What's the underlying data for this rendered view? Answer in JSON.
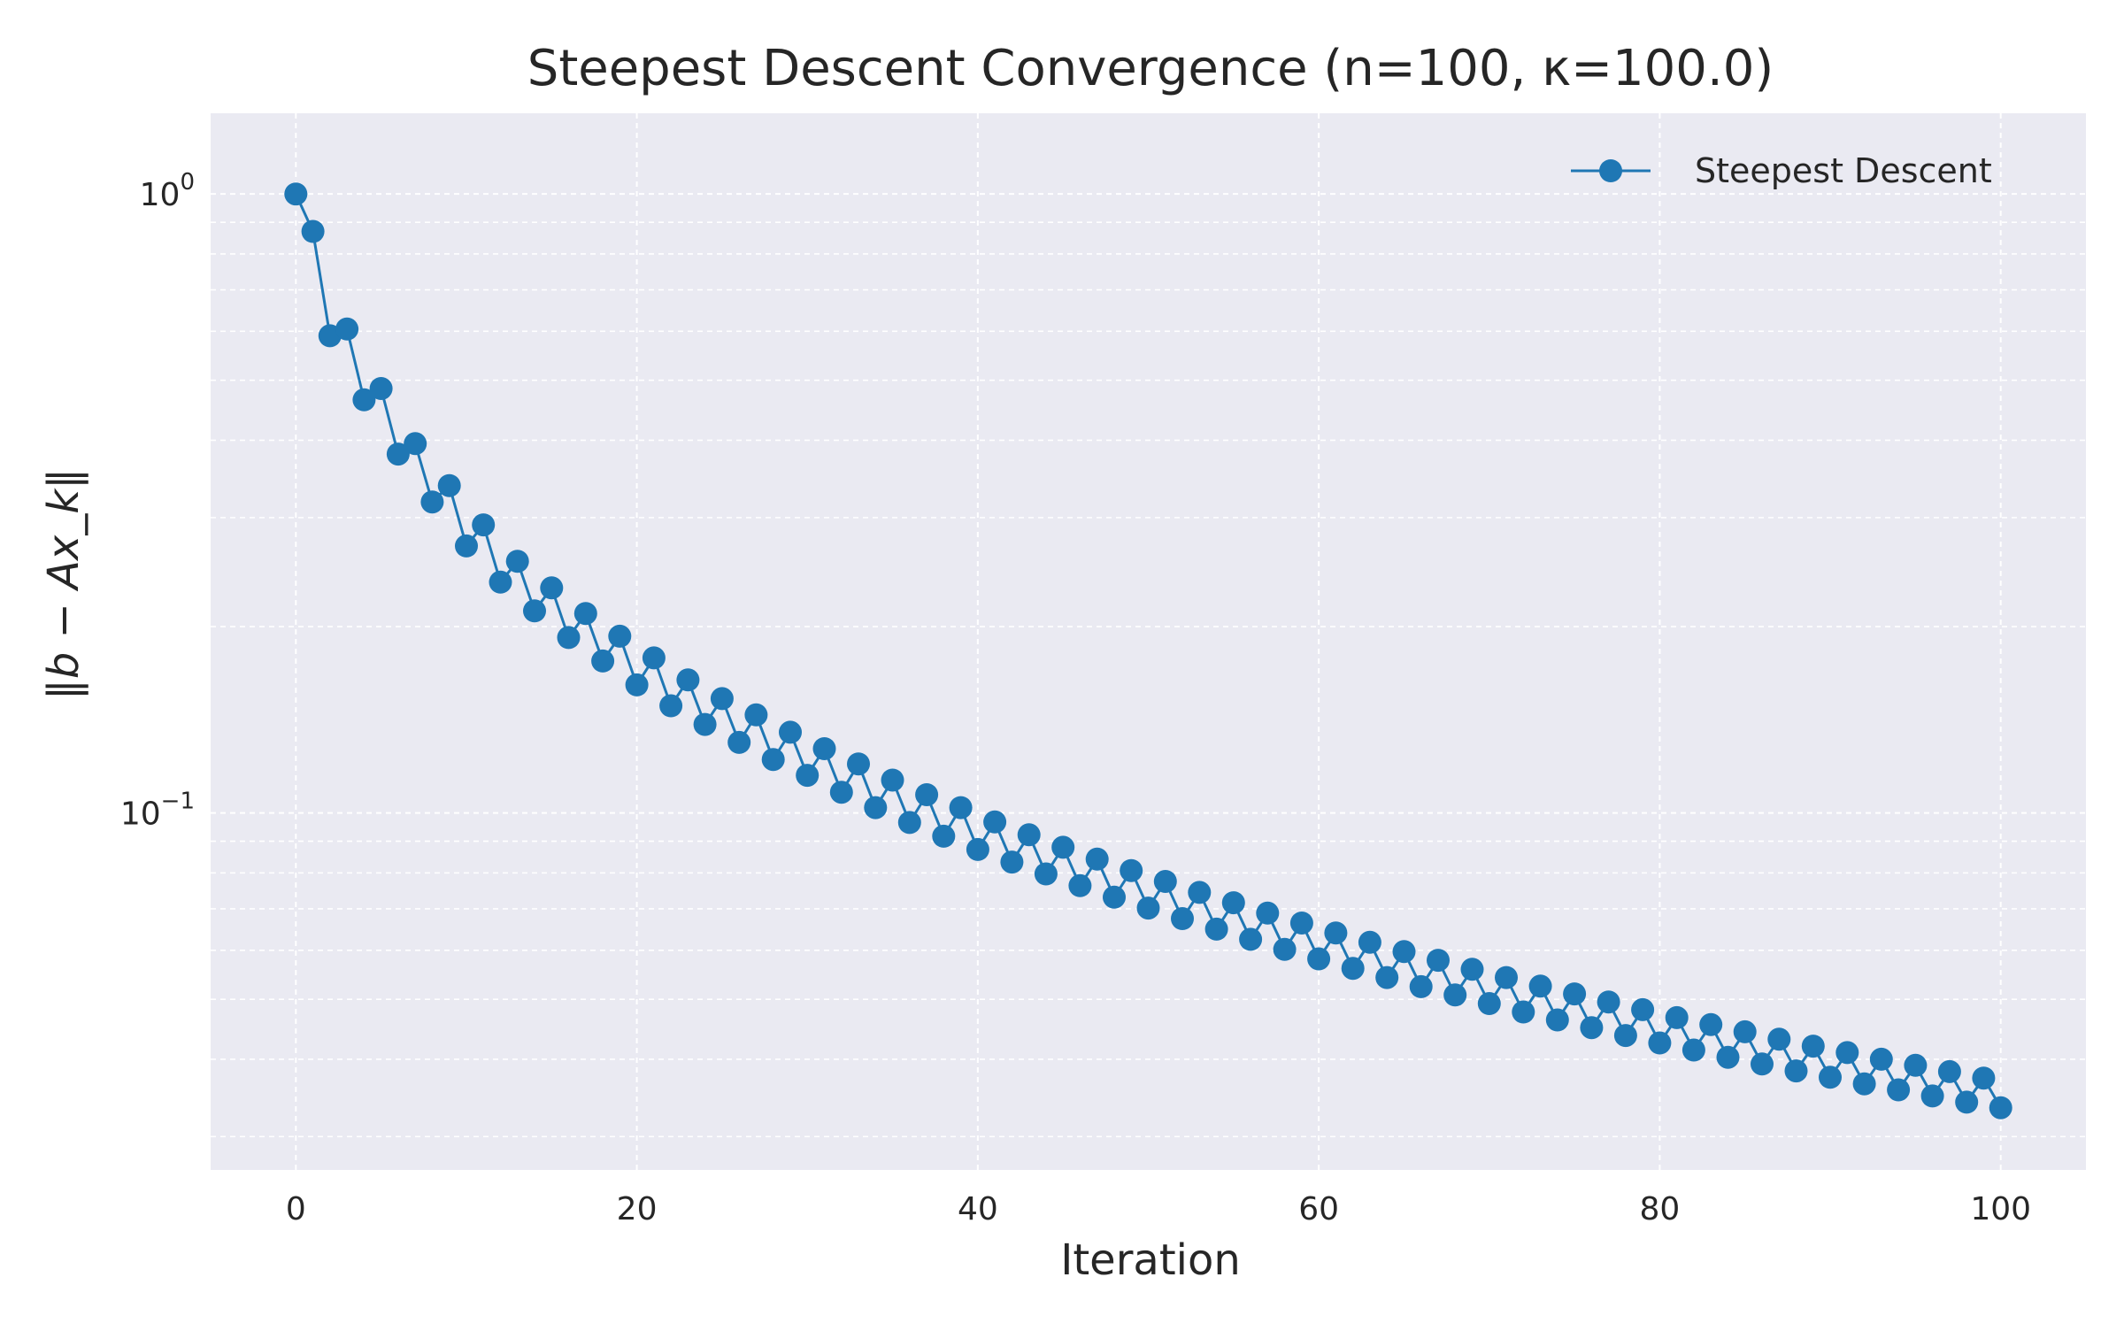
{
  "chart_data": {
    "type": "line",
    "title": "Steepest Descent Convergence (n=100, κ=100.0)",
    "xlabel": "Iteration",
    "ylabel": "‖b − Ax_k‖",
    "yscale": "log",
    "xlim": [
      -5,
      105
    ],
    "ylim": [
      0.0265,
      1.35
    ],
    "x_ticks": [
      0,
      20,
      40,
      60,
      80,
      100
    ],
    "x_tick_labels": [
      "0",
      "20",
      "40",
      "60",
      "80",
      "100"
    ],
    "y_ticks": [
      {
        "value": 1.0,
        "base": "10",
        "exponent": "0"
      },
      {
        "value": 0.1,
        "base": "10",
        "exponent": "−1"
      }
    ],
    "grid": true,
    "legend_position": "top-right",
    "colors": {
      "series": "#1f77b4",
      "plot_background": "#eaeaf2",
      "grid": "#ffffff"
    },
    "series": [
      {
        "name": "Steepest Descent",
        "marker": "circle",
        "x": [
          0,
          1,
          2,
          3,
          4,
          5,
          6,
          7,
          8,
          9,
          10,
          11,
          12,
          13,
          14,
          15,
          16,
          17,
          18,
          19,
          20,
          21,
          22,
          23,
          24,
          25,
          26,
          27,
          28,
          29,
          30,
          31,
          32,
          33,
          34,
          35,
          36,
          37,
          38,
          39,
          40,
          41,
          42,
          43,
          44,
          45,
          46,
          47,
          48,
          49,
          50,
          51,
          52,
          53,
          54,
          55,
          56,
          57,
          58,
          59,
          60,
          61,
          62,
          63,
          64,
          65,
          66,
          67,
          68,
          69,
          70,
          71,
          72,
          73,
          74,
          75,
          76,
          77,
          78,
          79,
          80,
          81,
          82,
          83,
          84,
          85,
          86,
          87,
          88,
          89,
          90,
          91,
          92,
          93,
          94,
          95,
          96,
          97,
          98,
          99,
          100
        ],
        "values": [
          1.0,
          0.87,
          0.59,
          0.605,
          0.465,
          0.485,
          0.38,
          0.395,
          0.318,
          0.338,
          0.27,
          0.292,
          0.236,
          0.255,
          0.212,
          0.231,
          0.192,
          0.21,
          0.176,
          0.193,
          0.161,
          0.178,
          0.149,
          0.164,
          0.139,
          0.153,
          0.13,
          0.144,
          0.122,
          0.135,
          0.115,
          0.127,
          0.108,
          0.12,
          0.102,
          0.113,
          0.0965,
          0.107,
          0.0917,
          0.102,
          0.0873,
          0.0967,
          0.0833,
          0.0922,
          0.0797,
          0.088,
          0.0763,
          0.0842,
          0.0731,
          0.0807,
          0.0702,
          0.0775,
          0.0675,
          0.0744,
          0.0649,
          0.0716,
          0.0625,
          0.0689,
          0.0602,
          0.0664,
          0.0581,
          0.064,
          0.0561,
          0.0618,
          0.0542,
          0.0597,
          0.0524,
          0.0578,
          0.0508,
          0.0559,
          0.0492,
          0.0542,
          0.0477,
          0.0525,
          0.0463,
          0.051,
          0.045,
          0.0495,
          0.0437,
          0.0481,
          0.0425,
          0.0467,
          0.0414,
          0.0455,
          0.0403,
          0.0443,
          0.0393,
          0.0431,
          0.0383,
          0.042,
          0.0374,
          0.041,
          0.0365,
          0.04,
          0.0357,
          0.0391,
          0.0349,
          0.0382,
          0.0341,
          0.0373,
          0.0334
        ]
      }
    ]
  }
}
